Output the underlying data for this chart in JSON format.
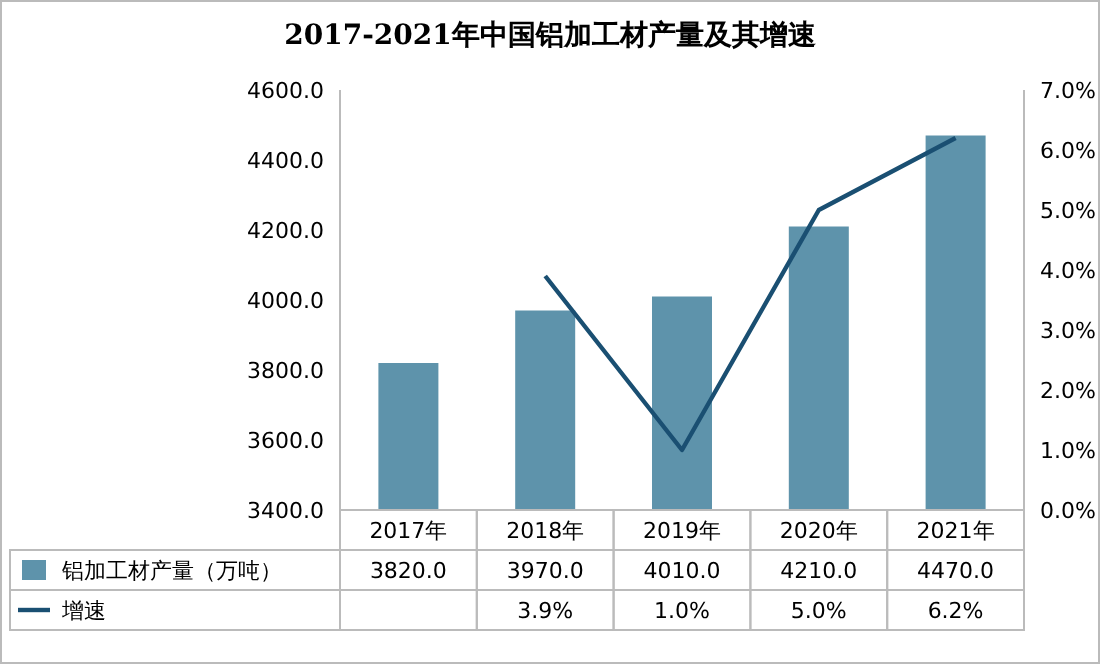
{
  "chart_data": {
    "type": "bar",
    "title": "2017-2021年中国铝加工材产量及其增速",
    "categories": [
      "2017年",
      "2018年",
      "2019年",
      "2020年",
      "2021年"
    ],
    "series": [
      {
        "name": "铝加工材产量（万吨）",
        "color": "#5e93ab",
        "values": [
          3820,
          3970,
          4010,
          4210,
          4470
        ],
        "value_labels": [
          "3820.0",
          "3970.0",
          "4010.0",
          "4210.0",
          "4470.0"
        ]
      },
      {
        "name": "增速",
        "type": "line",
        "axis": "y2",
        "color": "#1a4f72",
        "values": [
          null,
          3.9,
          1.0,
          5.0,
          6.2
        ],
        "value_labels": [
          null,
          "3.9%",
          "1.0%",
          "5.0%",
          "6.2%"
        ]
      }
    ],
    "ylim": [
      3400,
      4600
    ],
    "yticks": [
      {
        "value": 3400,
        "label": "3400.0"
      },
      {
        "value": 3600,
        "label": "3600.0"
      },
      {
        "value": 3800,
        "label": "3800.0"
      },
      {
        "value": 4000,
        "label": "4000.0"
      },
      {
        "value": 4200,
        "label": "4200.0"
      },
      {
        "value": 4400,
        "label": "4400.0"
      },
      {
        "value": 4600,
        "label": "4600.0"
      }
    ],
    "y2lim": [
      0,
      7
    ],
    "y2ticks": [
      {
        "value": 0,
        "label": "0.0%"
      },
      {
        "value": 1,
        "label": "1.0%"
      },
      {
        "value": 2,
        "label": "2.0%"
      },
      {
        "value": 3,
        "label": "3.0%"
      },
      {
        "value": 4,
        "label": "4.0%"
      },
      {
        "value": 5,
        "label": "5.0%"
      },
      {
        "value": 6,
        "label": "6.0%"
      },
      {
        "value": 7,
        "label": "7.0%"
      }
    ],
    "legend": "bottom",
    "marker": "none"
  }
}
